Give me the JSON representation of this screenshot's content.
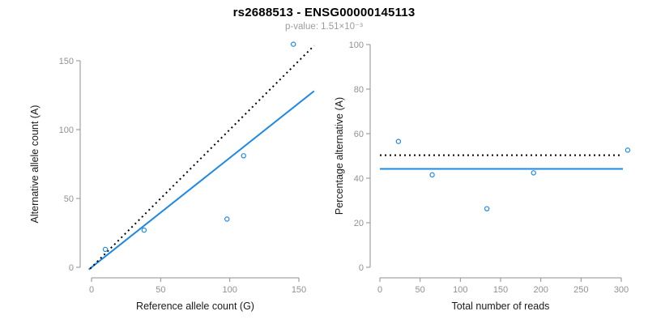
{
  "title": "rs2688513 - ENSG00000145113",
  "subtitle": "p-value: 1.51×10⁻³",
  "p_value": "1.51×10⁻³",
  "variant_id": "rs2688513",
  "gene_id": "ENSG00000145113",
  "colors": {
    "accent_blue": "#1E88E5",
    "axis_gray": "#8f8f8f",
    "tick_label_gray": "#919191",
    "axis_title_black": "#1a1a1a",
    "identity_black": "#000000",
    "subtitle_gray": "#9c9c9c"
  },
  "chart_data": [
    {
      "type": "scatter",
      "name": "allele-counts-scatter",
      "xlabel": "Reference allele count (G)",
      "ylabel": "Alternative allele count (A)",
      "xticks": [
        0,
        50,
        100,
        150
      ],
      "yticks": [
        0,
        50,
        100,
        150
      ],
      "xlim": [
        -8,
        166
      ],
      "ylim": [
        -8,
        166
      ],
      "grid": false,
      "legend": "none",
      "points": [
        [
          10,
          13
        ],
        [
          38,
          27
        ],
        [
          98,
          35
        ],
        [
          110,
          81
        ],
        [
          146,
          162
        ]
      ],
      "lines": [
        {
          "name": "fit-line",
          "style": "solid",
          "color": "#1E88E5",
          "slope": 0.795,
          "intercept": 0,
          "x1": -2,
          "y1": -1.6,
          "x2": 161,
          "y2": 128
        },
        {
          "name": "identity-line",
          "style": "dotted",
          "color": "#000000",
          "slope": 1,
          "intercept": 0,
          "x1": -1,
          "y1": -1,
          "x2": 161,
          "y2": 161
        }
      ]
    },
    {
      "type": "scatter",
      "name": "percentage-alternative-scatter",
      "xlabel": "Total number of reads",
      "ylabel": "Percentage alternative (A)",
      "xticks": [
        0,
        50,
        100,
        150,
        200,
        250,
        300
      ],
      "yticks": [
        0,
        20,
        40,
        60,
        80,
        100
      ],
      "xlim": [
        -12,
        315
      ],
      "ylim": [
        -5,
        105
      ],
      "grid": false,
      "legend": "none",
      "points": [
        [
          23,
          56.5
        ],
        [
          65,
          41.5
        ],
        [
          133,
          26.3
        ],
        [
          191,
          42.4
        ],
        [
          308,
          52.6
        ]
      ],
      "lines": [
        {
          "name": "mean-percentage-line",
          "style": "solid",
          "color": "#1E88E5",
          "value": 44.2,
          "x1": 0,
          "y1": 44.2,
          "x2": 302,
          "y2": 44.2
        },
        {
          "name": "expected-50-line",
          "style": "dotted",
          "color": "#000000",
          "value": 50.3,
          "x1": 0,
          "y1": 50.3,
          "x2": 302,
          "y2": 50.3
        }
      ]
    }
  ]
}
